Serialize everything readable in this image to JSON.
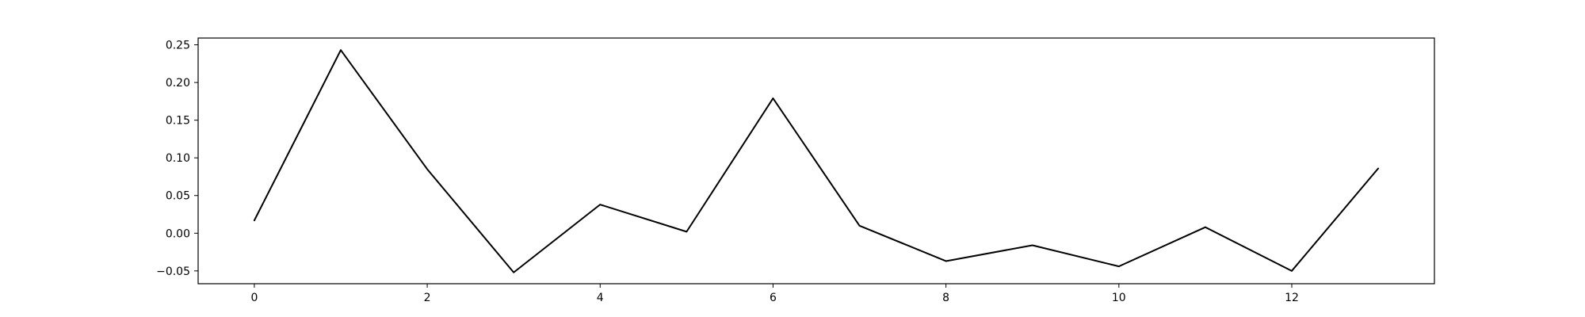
{
  "chart_data": {
    "type": "line",
    "title": "",
    "xlabel": "",
    "ylabel": "",
    "grid": false,
    "legend": "none",
    "xlim": [
      -0.65,
      13.65
    ],
    "ylim": [
      -0.067,
      0.259
    ],
    "x_ticks": [
      0,
      2,
      4,
      6,
      8,
      10,
      12
    ],
    "x_tick_labels": [
      "0",
      "2",
      "4",
      "6",
      "8",
      "10",
      "12"
    ],
    "y_ticks": [
      -0.05,
      0.0,
      0.05,
      0.1,
      0.15,
      0.2,
      0.25
    ],
    "y_tick_labels": [
      "−0.05",
      "0.00",
      "0.05",
      "0.10",
      "0.15",
      "0.20",
      "0.25"
    ],
    "series": [
      {
        "color": "#000000",
        "x": [
          0,
          1,
          2,
          3,
          4,
          5,
          6,
          7,
          8,
          9,
          10,
          11,
          12,
          13
        ],
        "values": [
          0.017,
          0.243,
          0.085,
          -0.052,
          0.038,
          0.002,
          0.179,
          0.01,
          -0.037,
          -0.016,
          -0.044,
          0.008,
          -0.05,
          0.086
        ]
      }
    ]
  }
}
